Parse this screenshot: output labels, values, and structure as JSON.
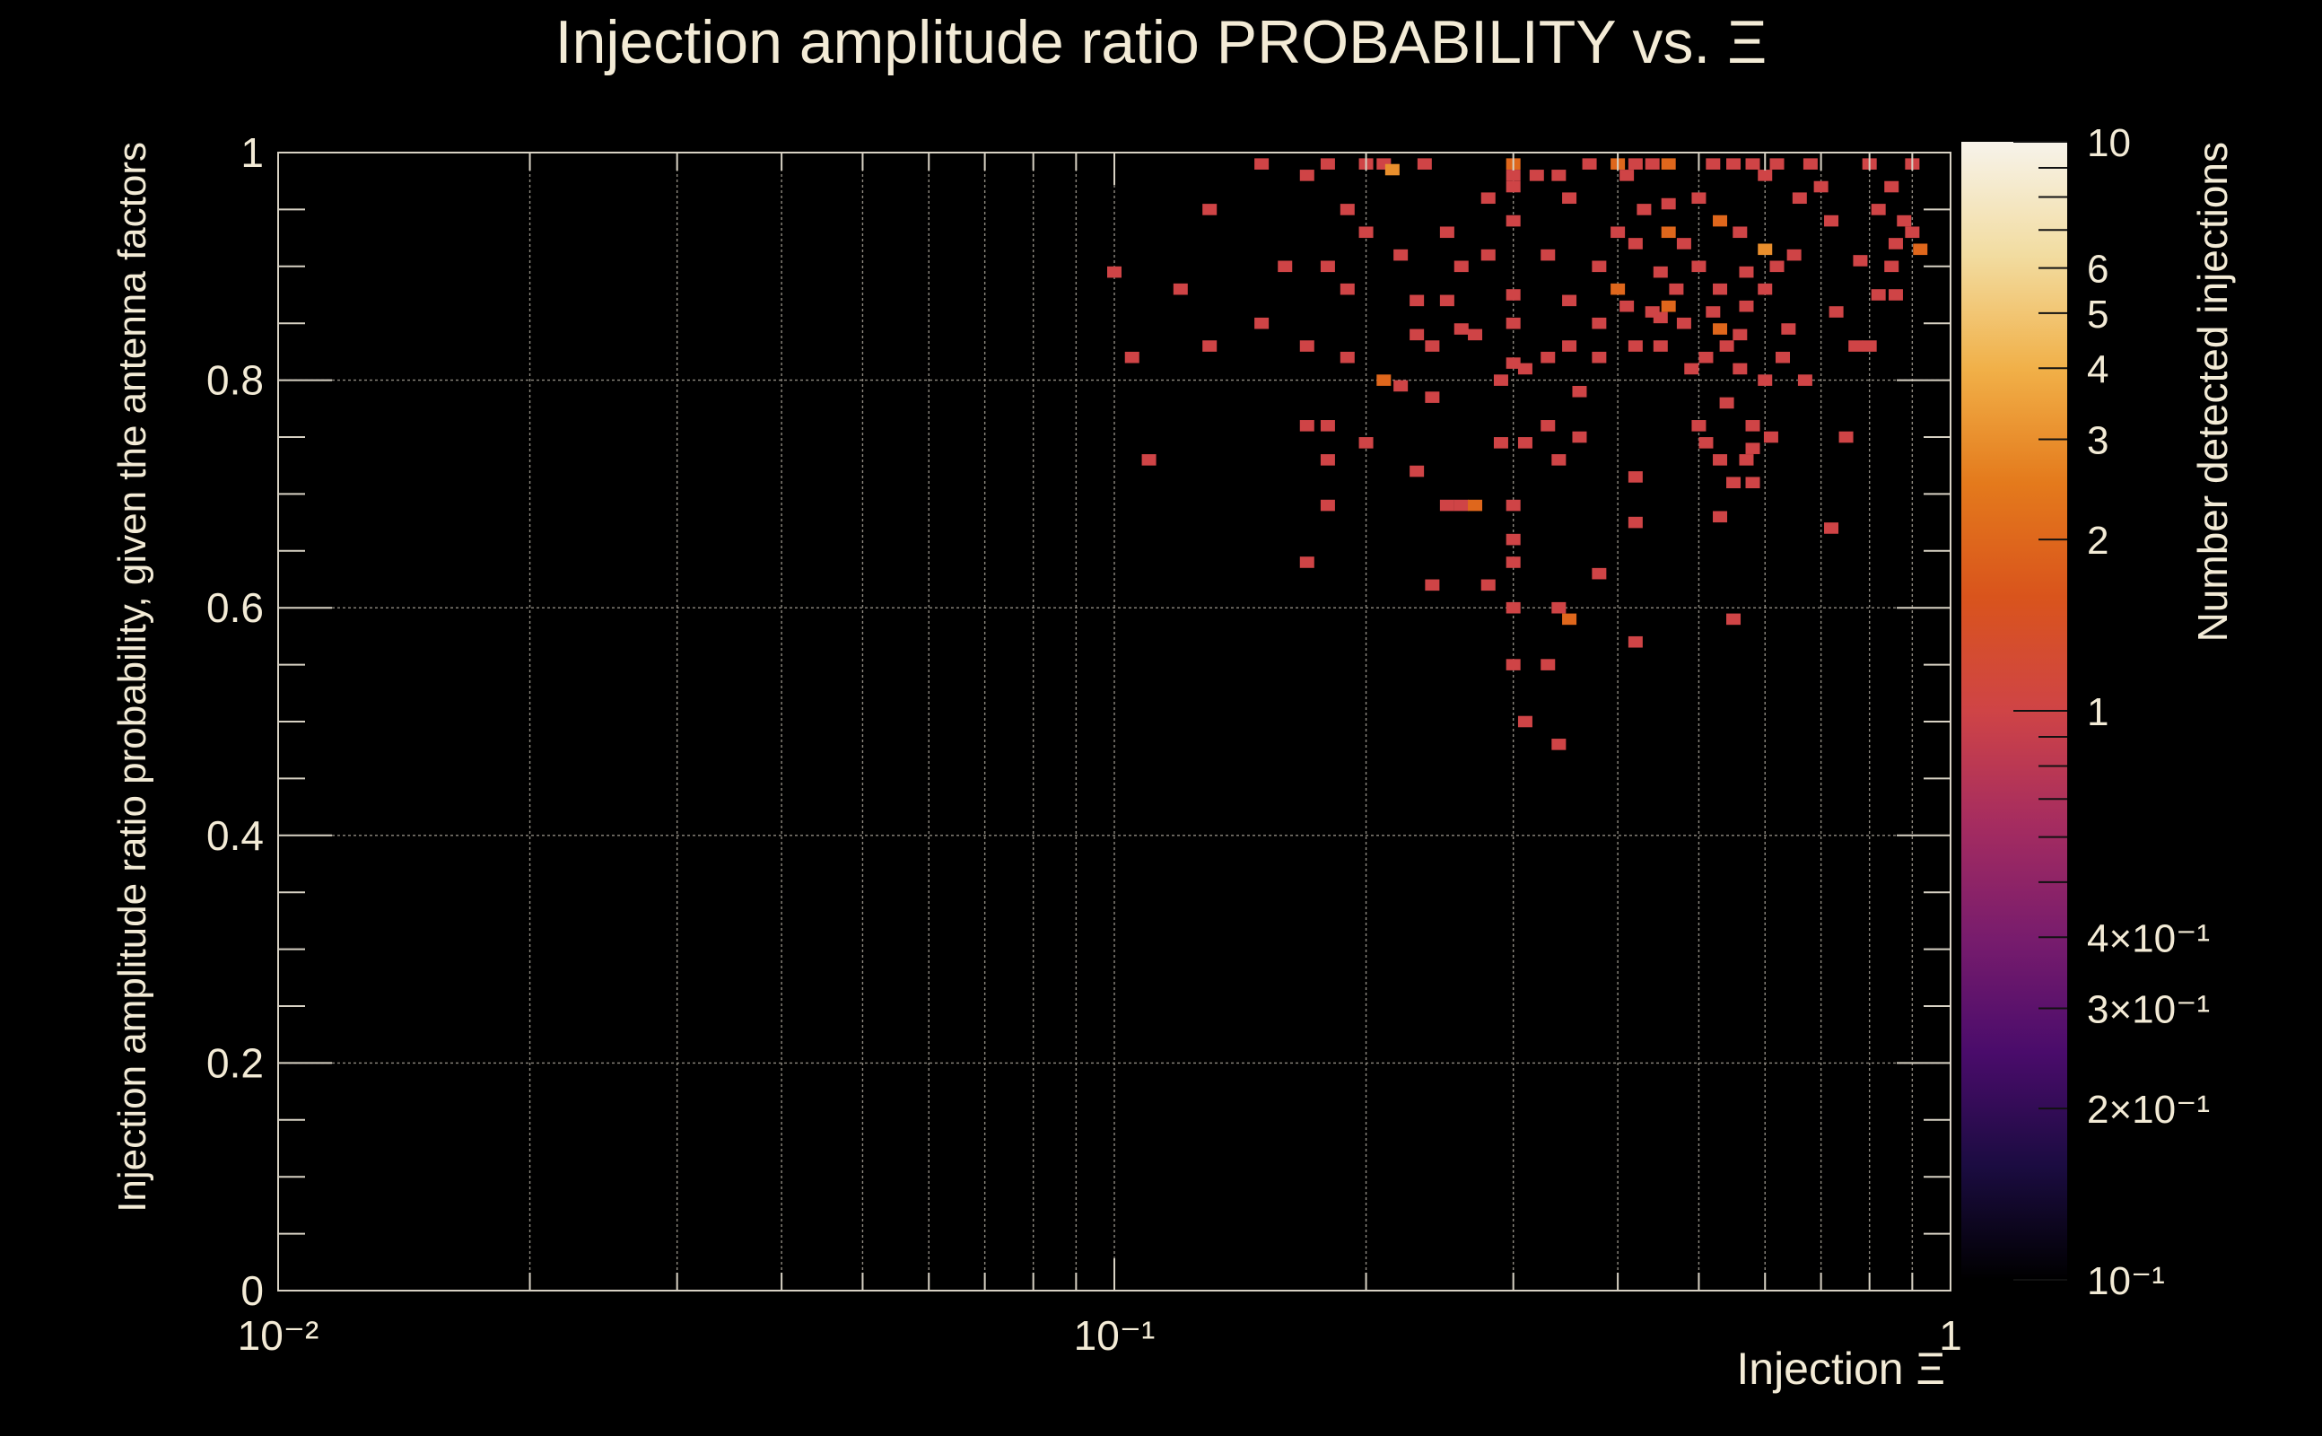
{
  "chart_data": {
    "type": "heatmap",
    "title": "Injection amplitude ratio PROBABILITY vs.  Ξ",
    "xlabel": "Injection Ξ",
    "ylabel": "Injection amplitude ratio probability, given the antenna factors",
    "zlabel": "Number detected injections",
    "x_scale": "log",
    "xlim": [
      0.01,
      1
    ],
    "ylim": [
      0,
      1
    ],
    "z_scale": "log",
    "zlim": [
      0.1,
      10
    ],
    "grid": true,
    "x_tick_labels": [
      "10⁻²",
      "10⁻¹",
      "1"
    ],
    "y_tick_labels": [
      "0",
      "0.2",
      "0.4",
      "0.6",
      "0.8",
      "1"
    ],
    "z_tick_labels": [
      "10⁻¹",
      "2×10⁻¹",
      "3×10⁻¹",
      "4×10⁻¹",
      "1",
      "2",
      "3",
      "4",
      "5",
      "6",
      "10"
    ],
    "z_tick_values": [
      0.1,
      0.2,
      0.3,
      0.4,
      1,
      2,
      3,
      4,
      5,
      6,
      10
    ],
    "colorscale": [
      "#000000",
      "#1b0c41",
      "#4a0c6b",
      "#781c6d",
      "#a52c60",
      "#cf4446",
      "#d9541c",
      "#e47a1c",
      "#f1b048",
      "#f2dca0",
      "#f7f3ea"
    ],
    "cells": [
      [
        0.15,
        0.99,
        1
      ],
      [
        0.17,
        0.98,
        1
      ],
      [
        0.18,
        0.99,
        1
      ],
      [
        0.2,
        0.99,
        1
      ],
      [
        0.21,
        0.99,
        1
      ],
      [
        0.215,
        0.985,
        3
      ],
      [
        0.235,
        0.99,
        1
      ],
      [
        0.3,
        0.99,
        2
      ],
      [
        0.3,
        0.98,
        1
      ],
      [
        0.32,
        0.98,
        1
      ],
      [
        0.34,
        0.98,
        1
      ],
      [
        0.37,
        0.99,
        1
      ],
      [
        0.4,
        0.99,
        2
      ],
      [
        0.42,
        0.99,
        1
      ],
      [
        0.44,
        0.99,
        1
      ],
      [
        0.46,
        0.99,
        2
      ],
      [
        0.52,
        0.99,
        1
      ],
      [
        0.55,
        0.99,
        1
      ],
      [
        0.58,
        0.99,
        1
      ],
      [
        0.62,
        0.99,
        1
      ],
      [
        0.68,
        0.99,
        1
      ],
      [
        0.8,
        0.99,
        1
      ],
      [
        0.9,
        0.99,
        1
      ],
      [
        0.3,
        0.97,
        1
      ],
      [
        0.41,
        0.98,
        1
      ],
      [
        0.5,
        0.96,
        1
      ],
      [
        0.6,
        0.98,
        1
      ],
      [
        0.7,
        0.97,
        1
      ],
      [
        0.85,
        0.97,
        1
      ],
      [
        0.13,
        0.95,
        1
      ],
      [
        0.19,
        0.95,
        1
      ],
      [
        0.28,
        0.96,
        1
      ],
      [
        0.35,
        0.96,
        1
      ],
      [
        0.43,
        0.95,
        1
      ],
      [
        0.46,
        0.955,
        1
      ],
      [
        0.53,
        0.94,
        2
      ],
      [
        0.66,
        0.96,
        1
      ],
      [
        0.72,
        0.94,
        1
      ],
      [
        0.82,
        0.95,
        1
      ],
      [
        0.88,
        0.94,
        1
      ],
      [
        0.2,
        0.93,
        1
      ],
      [
        0.25,
        0.93,
        1
      ],
      [
        0.3,
        0.94,
        1
      ],
      [
        0.4,
        0.93,
        1
      ],
      [
        0.46,
        0.93,
        2
      ],
      [
        0.56,
        0.93,
        1
      ],
      [
        0.9,
        0.93,
        1
      ],
      [
        0.86,
        0.92,
        1
      ],
      [
        0.42,
        0.92,
        1
      ],
      [
        0.48,
        0.92,
        1
      ],
      [
        0.6,
        0.915,
        3
      ],
      [
        0.65,
        0.91,
        1
      ],
      [
        0.92,
        0.915,
        2
      ],
      [
        0.1,
        0.895,
        1
      ],
      [
        0.16,
        0.9,
        1
      ],
      [
        0.18,
        0.9,
        1
      ],
      [
        0.22,
        0.91,
        1
      ],
      [
        0.26,
        0.9,
        1
      ],
      [
        0.28,
        0.91,
        1
      ],
      [
        0.33,
        0.91,
        1
      ],
      [
        0.38,
        0.9,
        1
      ],
      [
        0.45,
        0.895,
        1
      ],
      [
        0.5,
        0.9,
        1
      ],
      [
        0.57,
        0.895,
        1
      ],
      [
        0.62,
        0.9,
        1
      ],
      [
        0.78,
        0.905,
        1
      ],
      [
        0.85,
        0.9,
        1
      ],
      [
        0.12,
        0.88,
        1
      ],
      [
        0.19,
        0.88,
        1
      ],
      [
        0.4,
        0.88,
        2
      ],
      [
        0.47,
        0.88,
        1
      ],
      [
        0.53,
        0.88,
        1
      ],
      [
        0.6,
        0.88,
        1
      ],
      [
        0.82,
        0.875,
        1
      ],
      [
        0.86,
        0.875,
        1
      ],
      [
        0.23,
        0.87,
        1
      ],
      [
        0.25,
        0.87,
        1
      ],
      [
        0.3,
        0.875,
        1
      ],
      [
        0.35,
        0.87,
        1
      ],
      [
        0.41,
        0.865,
        1
      ],
      [
        0.44,
        0.86,
        1
      ],
      [
        0.46,
        0.865,
        2
      ],
      [
        0.52,
        0.86,
        1
      ],
      [
        0.57,
        0.865,
        1
      ],
      [
        0.73,
        0.86,
        1
      ],
      [
        0.15,
        0.85,
        1
      ],
      [
        0.26,
        0.845,
        1
      ],
      [
        0.3,
        0.85,
        1
      ],
      [
        0.38,
        0.85,
        1
      ],
      [
        0.45,
        0.855,
        1
      ],
      [
        0.48,
        0.85,
        1
      ],
      [
        0.53,
        0.845,
        2
      ],
      [
        0.56,
        0.84,
        1
      ],
      [
        0.64,
        0.845,
        1
      ],
      [
        0.13,
        0.83,
        1
      ],
      [
        0.17,
        0.83,
        1
      ],
      [
        0.23,
        0.84,
        1
      ],
      [
        0.24,
        0.83,
        1
      ],
      [
        0.27,
        0.84,
        1
      ],
      [
        0.35,
        0.83,
        1
      ],
      [
        0.42,
        0.83,
        1
      ],
      [
        0.45,
        0.83,
        1
      ],
      [
        0.51,
        0.82,
        1
      ],
      [
        0.54,
        0.83,
        1
      ],
      [
        0.63,
        0.82,
        1
      ],
      [
        0.77,
        0.83,
        1
      ],
      [
        0.8,
        0.83,
        1
      ],
      [
        0.105,
        0.82,
        1
      ],
      [
        0.19,
        0.82,
        1
      ],
      [
        0.3,
        0.815,
        1
      ],
      [
        0.33,
        0.82,
        1
      ],
      [
        0.38,
        0.82,
        1
      ],
      [
        0.56,
        0.81,
        1
      ],
      [
        0.21,
        0.8,
        2
      ],
      [
        0.22,
        0.795,
        1
      ],
      [
        0.29,
        0.8,
        1
      ],
      [
        0.31,
        0.81,
        1
      ],
      [
        0.49,
        0.81,
        1
      ],
      [
        0.6,
        0.8,
        1
      ],
      [
        0.67,
        0.8,
        1
      ],
      [
        0.24,
        0.785,
        1
      ],
      [
        0.36,
        0.79,
        1
      ],
      [
        0.54,
        0.78,
        1
      ],
      [
        0.17,
        0.76,
        1
      ],
      [
        0.18,
        0.76,
        1
      ],
      [
        0.33,
        0.76,
        1
      ],
      [
        0.5,
        0.76,
        1
      ],
      [
        0.58,
        0.76,
        1
      ],
      [
        0.2,
        0.745,
        1
      ],
      [
        0.29,
        0.745,
        1
      ],
      [
        0.31,
        0.745,
        1
      ],
      [
        0.36,
        0.75,
        1
      ],
      [
        0.51,
        0.745,
        1
      ],
      [
        0.61,
        0.75,
        1
      ],
      [
        0.75,
        0.75,
        1
      ],
      [
        0.11,
        0.73,
        1
      ],
      [
        0.18,
        0.73,
        1
      ],
      [
        0.34,
        0.73,
        1
      ],
      [
        0.53,
        0.73,
        1
      ],
      [
        0.57,
        0.73,
        1
      ],
      [
        0.58,
        0.74,
        1
      ],
      [
        0.23,
        0.72,
        1
      ],
      [
        0.42,
        0.715,
        1
      ],
      [
        0.55,
        0.71,
        1
      ],
      [
        0.58,
        0.71,
        1
      ],
      [
        0.18,
        0.69,
        1
      ],
      [
        0.25,
        0.69,
        1
      ],
      [
        0.26,
        0.69,
        1
      ],
      [
        0.27,
        0.69,
        2
      ],
      [
        0.3,
        0.69,
        1
      ],
      [
        0.42,
        0.675,
        1
      ],
      [
        0.53,
        0.68,
        1
      ],
      [
        0.72,
        0.67,
        1
      ],
      [
        0.3,
        0.66,
        1
      ],
      [
        0.17,
        0.64,
        1
      ],
      [
        0.3,
        0.64,
        1
      ],
      [
        0.38,
        0.63,
        1
      ],
      [
        0.24,
        0.62,
        1
      ],
      [
        0.28,
        0.62,
        1
      ],
      [
        0.3,
        0.6,
        1
      ],
      [
        0.34,
        0.6,
        1
      ],
      [
        0.35,
        0.59,
        2
      ],
      [
        0.42,
        0.57,
        1
      ],
      [
        0.55,
        0.59,
        1
      ],
      [
        0.3,
        0.55,
        1
      ],
      [
        0.33,
        0.55,
        1
      ],
      [
        0.31,
        0.5,
        1
      ],
      [
        0.34,
        0.48,
        1
      ]
    ]
  }
}
